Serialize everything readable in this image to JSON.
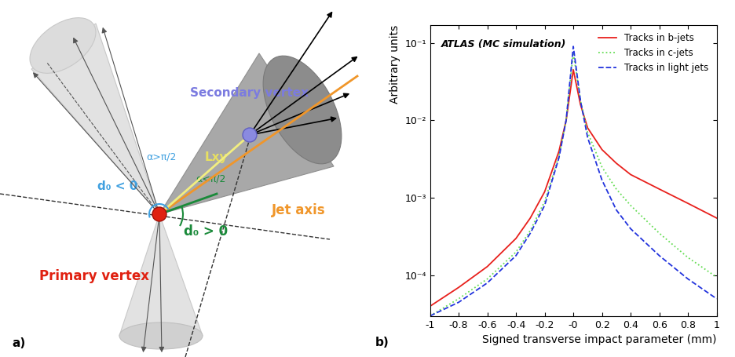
{
  "diagram": {
    "panel_label": "a)",
    "labels": {
      "secondary_vertex": "Secondary vertex",
      "alpha_obtuse": "α>π/2",
      "d0_negative": "d₀ < 0",
      "decay_length": "Lxy",
      "alpha_acute": "α<π/2",
      "jet_axis": "Jet axis",
      "d0_positive": "d₀ > 0",
      "primary_vertex": "Primary vertex"
    }
  },
  "chart_data": {
    "type": "line",
    "panel_label": "b)",
    "annotation": "ATLAS (MC simulation)",
    "x_label": "Signed transverse impact parameter (mm)",
    "y_label": "Arbitrary units",
    "x": [
      -1,
      -0.8,
      -0.6,
      -0.4,
      -0.3,
      -0.2,
      -0.1,
      -0.05,
      0,
      0.05,
      0.1,
      0.2,
      0.3,
      0.4,
      0.6,
      0.8,
      1
    ],
    "series": [
      {
        "name": "Tracks in b-jets",
        "color": "#e8201c",
        "line_style": "solid",
        "values": [
          4e-05,
          7e-05,
          0.00013,
          0.0003,
          0.00055,
          0.0012,
          0.004,
          0.01,
          0.045,
          0.016,
          0.008,
          0.0042,
          0.0028,
          0.002,
          0.0013,
          0.00085,
          0.00055
        ]
      },
      {
        "name": "Tracks in c-jets",
        "color": "#66dd55",
        "line_style": "dotted",
        "values": [
          3e-05,
          5e-05,
          9e-05,
          0.0002,
          0.00038,
          0.0009,
          0.0035,
          0.01,
          0.075,
          0.018,
          0.007,
          0.0025,
          0.0013,
          0.0008,
          0.00035,
          0.00017,
          9.5e-05
        ]
      },
      {
        "name": "Tracks in light jets",
        "color": "#2233dd",
        "line_style": "dashed",
        "values": [
          3e-05,
          4.5e-05,
          8e-05,
          0.00018,
          0.00035,
          0.0008,
          0.0033,
          0.01,
          0.09,
          0.018,
          0.006,
          0.0017,
          0.0007,
          0.0004,
          0.00018,
          9e-05,
          5e-05
        ]
      }
    ],
    "log": "y",
    "xlim": [
      -1,
      1
    ],
    "ylim": [
      3e-05,
      0.17
    ],
    "xticks": [
      -1,
      -0.8,
      -0.6,
      -0.4,
      -0.2,
      {
        "value": 0,
        "label": "-0"
      },
      0.2,
      0.4,
      0.6,
      0.8,
      1
    ],
    "yticks": [
      {
        "value": 0.0001,
        "label": "10⁻⁴"
      },
      {
        "value": 0.001,
        "label": "10⁻³"
      },
      {
        "value": 0.01,
        "label": "10⁻²"
      },
      {
        "value": 0.1,
        "label": "10⁻¹"
      }
    ],
    "legend": "upper right",
    "grid": false
  }
}
